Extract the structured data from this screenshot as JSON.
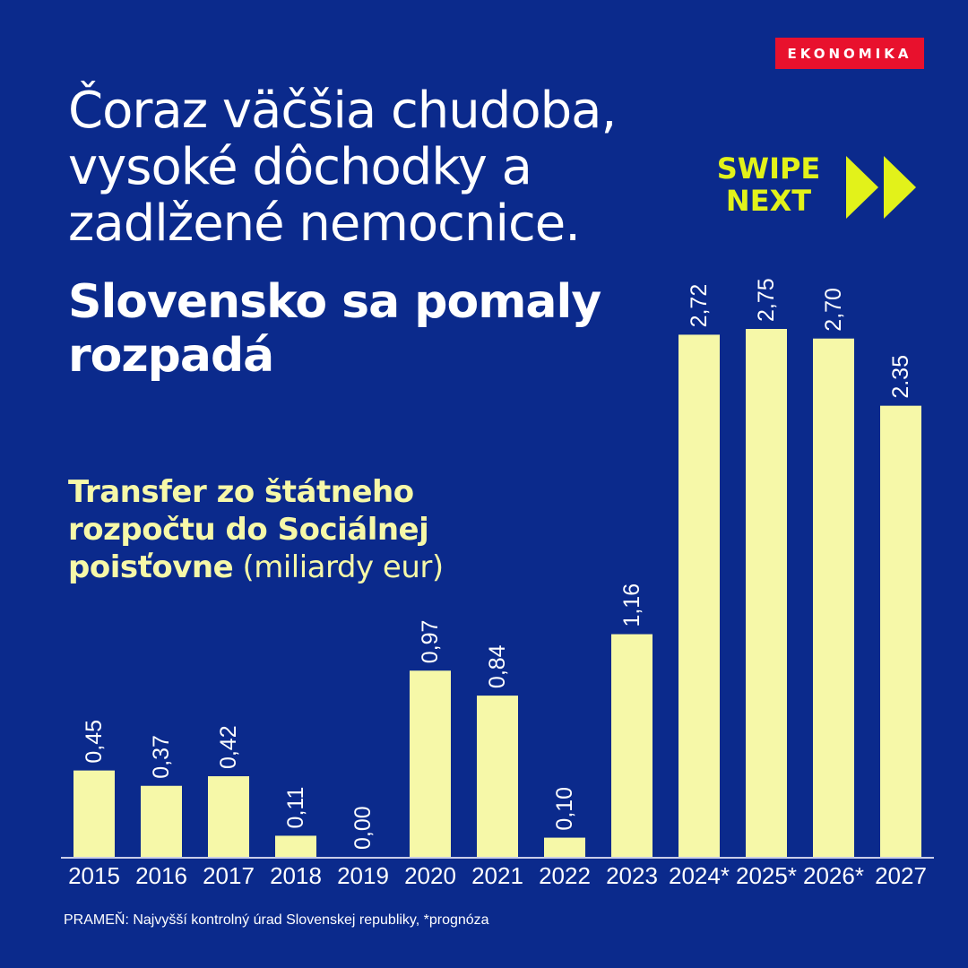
{
  "brand": {
    "badge": "EKONOMIKA"
  },
  "headline": {
    "lines": [
      "Čoraz väčšia chudoba,",
      "vysoké dôchodky a",
      "zadlžené nemocnice."
    ],
    "sub_lines": [
      "Slovensko sa pomaly",
      "rozpadá"
    ]
  },
  "swipe": {
    "line1": "SWIPE",
    "line2": "NEXT"
  },
  "source": "PRAMEŇ: Najvyšší kontrolný úrad Slovenskej republiky, *prognóza",
  "colors": {
    "background": "#0b2a8c",
    "bar": "#f6f8a8",
    "badge": "#e8112d",
    "accent": "#e2f21a"
  },
  "chart_data": {
    "type": "bar",
    "title_bold": "Transfer zo štátneho rozpočtu do Sociálnej poisťovne",
    "title_unit": "(miliardy eur)",
    "categories": [
      "2015",
      "2016",
      "2017",
      "2018",
      "2019",
      "2020",
      "2021",
      "2022",
      "2023",
      "2024*",
      "2025*",
      "2026*",
      "2027"
    ],
    "values": [
      0.45,
      0.37,
      0.42,
      0.11,
      0.0,
      0.97,
      0.84,
      0.1,
      1.16,
      2.72,
      2.75,
      2.7,
      2.35
    ],
    "value_labels": [
      "0,45",
      "0,37",
      "0,42",
      "0,11",
      "0,00",
      "0,97",
      "0,84",
      "0,10",
      "1,16",
      "2,72",
      "2,75",
      "2,70",
      "2.35"
    ],
    "ylim": [
      0,
      2.75
    ],
    "grid": false,
    "legend": "none"
  }
}
